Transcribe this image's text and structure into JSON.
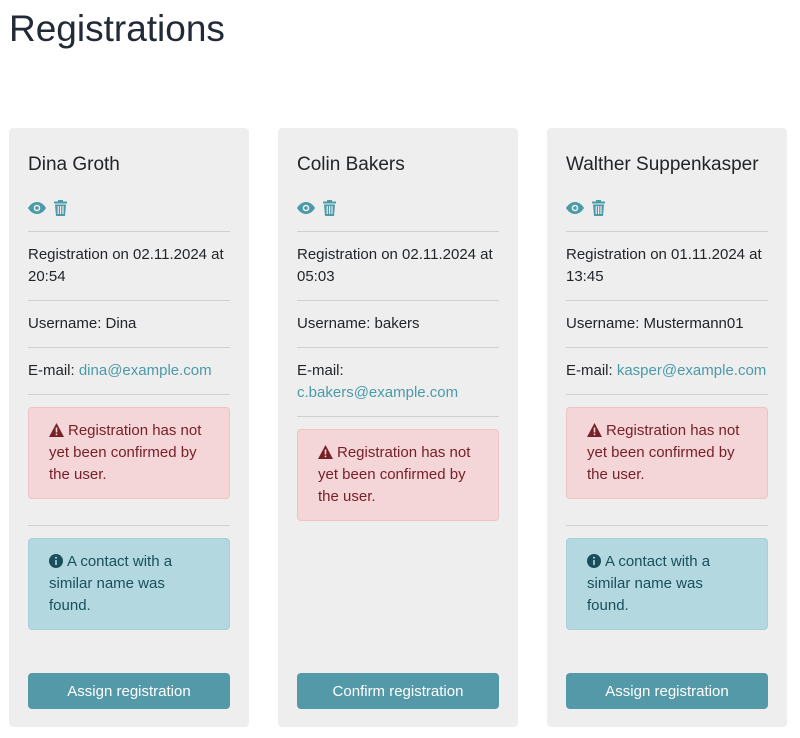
{
  "page_title": "Registrations",
  "accent": "#5499a8",
  "cards": [
    {
      "name": "Dina Groth",
      "registration": "Registration on 02.11.2024 at 20:54",
      "username": "Username: Dina",
      "email_label": "E-mail:",
      "email": "dina@example.com",
      "warning": "Registration has not yet been confirmed by the user.",
      "info": "A contact with a similar name was found.",
      "button": "Assign registration"
    },
    {
      "name": "Colin Bakers",
      "registration": "Registration on 02.11.2024 at 05:03",
      "username": "Username: bakers",
      "email_label": "E-mail:",
      "email": "c.bakers@example.com",
      "warning": "Registration has not yet been confirmed by the user.",
      "button": "Confirm registration"
    },
    {
      "name": "Walther Suppenkasper",
      "registration": "Registration on 01.11.2024 at 13:45",
      "username": "Username: Mustermann01",
      "email_label": "E-mail:",
      "email": "kasper@example.com",
      "warning": "Registration has not yet been confirmed by the user.",
      "info": "A contact with a similar name was found.",
      "button": "Assign registration"
    }
  ],
  "icons": {
    "view": "eye-icon",
    "delete": "trash-icon",
    "warning": "exclamation-triangle-icon",
    "info": "info-circle-icon"
  }
}
